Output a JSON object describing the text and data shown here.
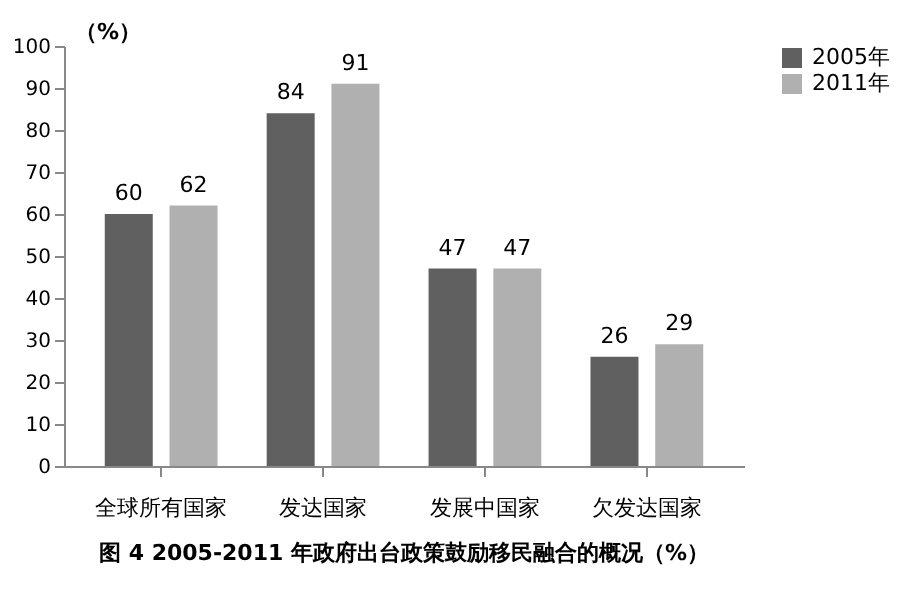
{
  "chart_data": {
    "type": "bar",
    "title": "图 4   2005-2011 年政府出台政策鼓励移民融合的概况（%）",
    "ylabel": "（%）",
    "categories": [
      "全球所有国家",
      "发达国家",
      "发展中国家",
      "欠发达国家"
    ],
    "series": [
      {
        "name": "2005年",
        "color": "#606060",
        "values": [
          60,
          84,
          47,
          26
        ]
      },
      {
        "name": "2011年",
        "color": "#b0b0b0",
        "values": [
          62,
          91,
          47,
          29
        ]
      }
    ],
    "ylim": [
      0,
      100
    ],
    "yticks": [
      0,
      10,
      20,
      30,
      40,
      50,
      60,
      70,
      80,
      90,
      100
    ],
    "data_labels": true,
    "grid": false,
    "legend": "right"
  }
}
